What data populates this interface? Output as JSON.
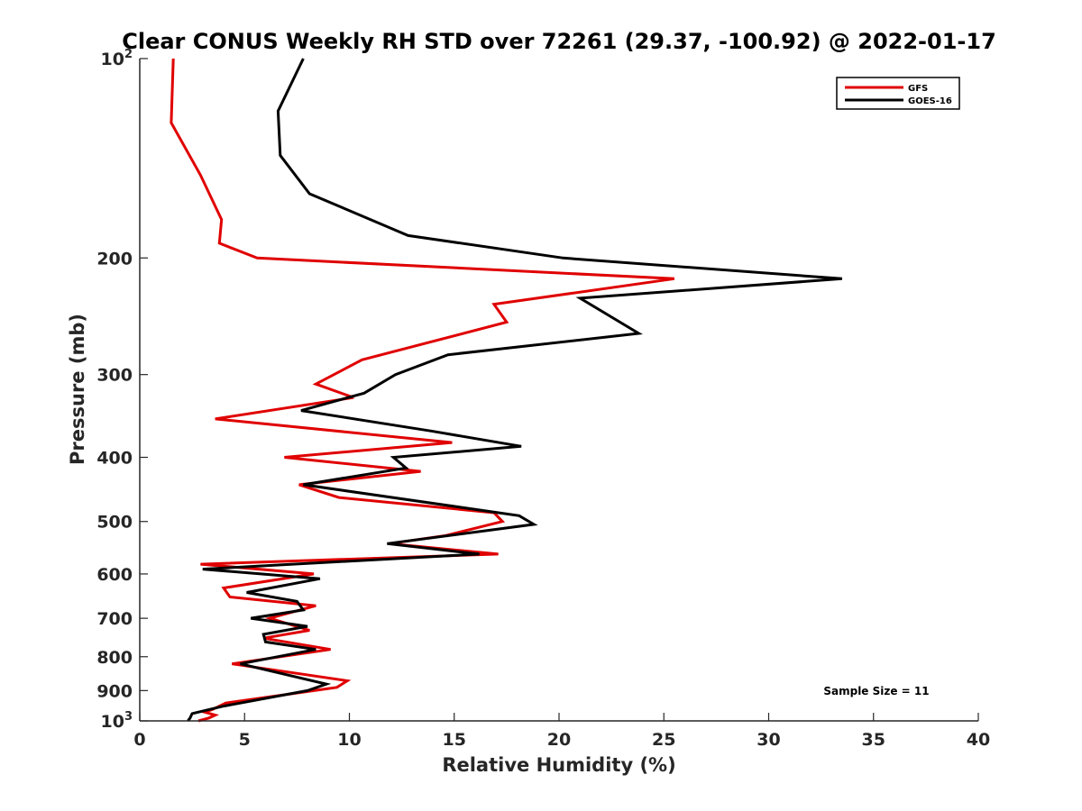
{
  "chart_data": {
    "type": "line",
    "title": "Clear CONUS Weekly RH STD over 72261 (29.37, -100.92) @ 2022-01-17",
    "xlabel": "Relative Humidity (%)",
    "ylabel": "Pressure (mb)",
    "xlim": [
      0,
      40
    ],
    "ylim": [
      100,
      1000
    ],
    "y_scale": "log",
    "y_reversed": true,
    "grid": false,
    "legend_position": "top-right",
    "x_ticks": [
      0,
      5,
      10,
      15,
      20,
      25,
      30,
      35,
      40
    ],
    "y_ticks": [
      {
        "value": 100,
        "base": "10",
        "exp": "2"
      },
      {
        "value": 200,
        "label": "200"
      },
      {
        "value": 300,
        "label": "300"
      },
      {
        "value": 400,
        "label": "400"
      },
      {
        "value": 500,
        "label": "500"
      },
      {
        "value": 600,
        "label": "600"
      },
      {
        "value": 700,
        "label": "700"
      },
      {
        "value": 800,
        "label": "800"
      },
      {
        "value": 900,
        "label": "900"
      },
      {
        "value": 1000,
        "base": "10",
        "exp": "3"
      }
    ],
    "annotation": "Sample Size = 11",
    "series": [
      {
        "name": "GFS",
        "color": "#e00000",
        "points": [
          [
            1.6,
            100
          ],
          [
            1.5,
            125
          ],
          [
            2.9,
            150
          ],
          [
            3.9,
            175
          ],
          [
            3.8,
            190
          ],
          [
            5.6,
            200
          ],
          [
            25.5,
            215
          ],
          [
            16.9,
            235
          ],
          [
            17.5,
            250
          ],
          [
            10.6,
            285
          ],
          [
            8.4,
            310
          ],
          [
            10.2,
            325
          ],
          [
            3.6,
            350
          ],
          [
            14.9,
            380
          ],
          [
            6.9,
            400
          ],
          [
            13.4,
            420
          ],
          [
            7.6,
            440
          ],
          [
            9.5,
            460
          ],
          [
            16.9,
            485
          ],
          [
            17.3,
            500
          ],
          [
            14.6,
            525
          ],
          [
            11.9,
            540
          ],
          [
            17.1,
            560
          ],
          [
            2.9,
            580
          ],
          [
            8.3,
            600
          ],
          [
            4.0,
            630
          ],
          [
            4.3,
            650
          ],
          [
            8.4,
            670
          ],
          [
            6.2,
            700
          ],
          [
            8.1,
            730
          ],
          [
            5.9,
            750
          ],
          [
            9.1,
            780
          ],
          [
            4.4,
            820
          ],
          [
            9.9,
            870
          ],
          [
            9.4,
            890
          ],
          [
            4.1,
            940
          ],
          [
            3.5,
            960
          ],
          [
            3.1,
            970
          ],
          [
            3.6,
            980
          ],
          [
            3.3,
            990
          ],
          [
            2.8,
            1000
          ]
        ]
      },
      {
        "name": "GOES-16",
        "color": "#000000",
        "points": [
          [
            7.8,
            100
          ],
          [
            6.6,
            120
          ],
          [
            6.7,
            140
          ],
          [
            8.1,
            160
          ],
          [
            12.8,
            185
          ],
          [
            20.2,
            200
          ],
          [
            33.5,
            215
          ],
          [
            21.0,
            230
          ],
          [
            23.8,
            260
          ],
          [
            14.7,
            280
          ],
          [
            12.2,
            300
          ],
          [
            10.7,
            320
          ],
          [
            7.7,
            340
          ],
          [
            13.9,
            365
          ],
          [
            18.2,
            385
          ],
          [
            12.1,
            400
          ],
          [
            12.7,
            415
          ],
          [
            7.8,
            440
          ],
          [
            18.1,
            490
          ],
          [
            18.8,
            505
          ],
          [
            11.8,
            540
          ],
          [
            16.2,
            560
          ],
          [
            3.0,
            590
          ],
          [
            8.6,
            610
          ],
          [
            5.1,
            640
          ],
          [
            7.5,
            660
          ],
          [
            7.8,
            680
          ],
          [
            5.3,
            700
          ],
          [
            8.0,
            720
          ],
          [
            5.9,
            740
          ],
          [
            6.0,
            760
          ],
          [
            8.4,
            780
          ],
          [
            4.8,
            820
          ],
          [
            8.9,
            880
          ],
          [
            8.0,
            900
          ],
          [
            4.0,
            950
          ],
          [
            2.5,
            975
          ],
          [
            2.4,
            990
          ],
          [
            2.3,
            1000
          ]
        ]
      }
    ]
  }
}
